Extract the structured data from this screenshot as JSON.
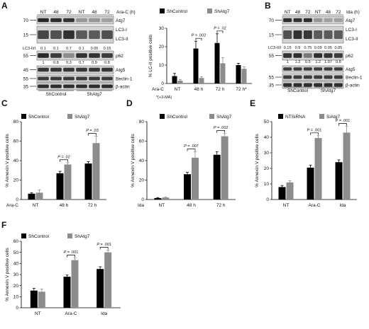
{
  "panels": {
    "A": {
      "letter": "A",
      "blot": {
        "header_lanes": [
          "NT",
          "48",
          "72",
          "NT",
          "48",
          "72"
        ],
        "header_unit": "Ara-C (h)",
        "mw_markers": [
          "70",
          "15",
          "55",
          "45",
          "55",
          "35"
        ],
        "bands": [
          "Atg7",
          "LC3-I",
          "LC3-II",
          "p62",
          "Atg5",
          "Beclin-1",
          "β-actin"
        ],
        "ratio_label": "LC3-II/I",
        "ratio_values": [
          "0.1",
          "0.1",
          "0.7",
          "0.1",
          "0.05",
          "0.15"
        ],
        "p62_label_values": [
          "1",
          "0.8",
          "0.3",
          "0.7",
          "0.9",
          "0.8"
        ],
        "groups": [
          "ShControl",
          "ShAtg7"
        ]
      },
      "chart_data": {
        "type": "bar",
        "ylabel": "% LC-II positive cells",
        "ylim": [
          0,
          30
        ],
        "yticks": [
          0,
          10,
          20,
          30
        ],
        "categories": [
          "NT",
          "48 h",
          "72 h",
          "72 h*"
        ],
        "row_label": "Ara-C",
        "footnote": "*(+3-MA)",
        "series": [
          {
            "name": "ShControl",
            "color": "#000000",
            "values": [
              4,
              19,
              22,
              10
            ],
            "err": [
              1.5,
              4,
              5,
              1
            ]
          },
          {
            "name": "ShAtg7",
            "color": "#8c8c8c",
            "values": [
              1.5,
              3,
              11,
              8
            ],
            "err": [
              0.7,
              0.7,
              3,
              1
            ]
          }
        ],
        "annotations": [
          {
            "label": "P = .002",
            "category": 1
          },
          {
            "label": "P = .02",
            "category": 2
          }
        ]
      }
    },
    "B": {
      "letter": "B",
      "blot": {
        "header_lanes": [
          "NT",
          "48",
          "72",
          "NT",
          "48",
          "72"
        ],
        "header_unit": "Ida (h)",
        "mw_markers": [
          "70",
          "15",
          "55",
          "55",
          "35"
        ],
        "bands": [
          "Atg7",
          "LC3-I",
          "LC3-II",
          "p62",
          "Atg5",
          "Beclin-1",
          "β-actin"
        ],
        "ratio_label": "LC3-II/I",
        "ratio_values": [
          "0.15",
          "0.9",
          "0.75",
          "0.09",
          "0.05",
          "0.05"
        ],
        "p62_label_values": [
          "1",
          "1.2",
          "0.5",
          "1.2",
          "1.07",
          "0.8"
        ],
        "groups": [
          "ShControl",
          "ShAtg7"
        ]
      }
    },
    "C": {
      "letter": "C",
      "chart_data": {
        "type": "bar",
        "ylabel": "% Annexin V positive cells",
        "ylim": [
          0,
          80
        ],
        "yticks": [
          0,
          20,
          40,
          60,
          80
        ],
        "categories": [
          "NT",
          "48 h",
          "72 h"
        ],
        "row_label": "Ara-C",
        "series": [
          {
            "name": "ShControl",
            "color": "#000000",
            "values": [
              6,
              27,
              37
            ],
            "err": [
              1,
              2,
              2
            ]
          },
          {
            "name": "ShAtg7",
            "color": "#8c8c8c",
            "values": [
              7,
              36,
              58
            ],
            "err": [
              3,
              2,
              7
            ]
          }
        ],
        "annotations": [
          {
            "label": "P = .02",
            "category": 1
          },
          {
            "label": "P = .03",
            "category": 2
          }
        ]
      }
    },
    "D": {
      "letter": "D",
      "chart_data": {
        "type": "bar",
        "ylabel": "% Annexin V positive cells",
        "ylim": [
          0,
          80
        ],
        "yticks": [
          0,
          20,
          40,
          60,
          80
        ],
        "categories": [
          "NT",
          "48 h",
          "72 h"
        ],
        "row_label": "Ida",
        "series": [
          {
            "name": "ShControl",
            "color": "#000000",
            "values": [
              1.5,
              26,
              46
            ],
            "err": [
              0.5,
              2,
              3
            ]
          },
          {
            "name": "ShAtg7",
            "color": "#8c8c8c",
            "values": [
              2,
              43,
              65
            ],
            "err": [
              0.5,
              6,
              3
            ]
          }
        ],
        "annotations": [
          {
            "label": "P = .007",
            "category": 1
          },
          {
            "label": "P = .002",
            "category": 2
          }
        ]
      }
    },
    "E": {
      "letter": "E",
      "chart_data": {
        "type": "bar",
        "ylabel": "% Annexin V positive cells",
        "ylim": [
          0,
          50
        ],
        "yticks": [
          0,
          10,
          20,
          30,
          40,
          50
        ],
        "categories": [
          "NT",
          "Ara-C",
          "Ida"
        ],
        "series": [
          {
            "name": "NTSiRNA",
            "color": "#000000",
            "values": [
              8,
              20.5,
              24
            ],
            "err": [
              1,
              1.5,
              1.5
            ]
          },
          {
            "name": "SiAtg7",
            "color": "#8c8c8c",
            "values": [
              11,
              39.5,
              43
            ],
            "err": [
              1,
              1.5,
              4
            ]
          }
        ],
        "annotations": [
          {
            "label": "P = .001",
            "category": 1
          },
          {
            "label": "P = .001",
            "category": 2
          }
        ]
      }
    },
    "F": {
      "letter": "F",
      "chart_data": {
        "type": "bar",
        "ylabel": "% Annexin V positive cells",
        "ylim": [
          0,
          60
        ],
        "yticks": [
          0,
          10,
          20,
          30,
          40,
          50,
          60
        ],
        "categories": [
          "NT",
          "Ara-C",
          "Ida"
        ],
        "series": [
          {
            "name": "ShControl",
            "color": "#000000",
            "values": [
              15.5,
              28,
              35
            ],
            "err": [
              2,
              1.5,
              2
            ]
          },
          {
            "name": "ShAtg7",
            "color": "#8c8c8c",
            "values": [
              14.5,
              43,
              50
            ],
            "err": [
              2.5,
              2,
              2
            ]
          }
        ],
        "annotations": [
          {
            "label": "P = .001",
            "category": 1
          },
          {
            "label": "P = .001",
            "category": 2
          }
        ]
      }
    }
  }
}
